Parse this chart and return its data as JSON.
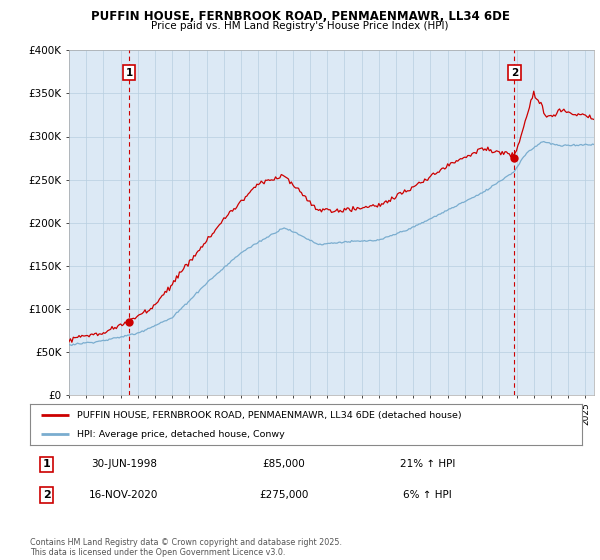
{
  "title": "PUFFIN HOUSE, FERNBROOK ROAD, PENMAENMAWR, LL34 6DE",
  "subtitle": "Price paid vs. HM Land Registry's House Price Index (HPI)",
  "ylim": [
    0,
    400000
  ],
  "yticks": [
    0,
    50000,
    100000,
    150000,
    200000,
    250000,
    300000,
    350000,
    400000
  ],
  "ytick_labels": [
    "£0",
    "£50K",
    "£100K",
    "£150K",
    "£200K",
    "£250K",
    "£300K",
    "£350K",
    "£400K"
  ],
  "xlim_start": 1995.0,
  "xlim_end": 2025.5,
  "transaction1": {
    "date_num": 1998.5,
    "price": 85000,
    "label": "1"
  },
  "transaction2": {
    "date_num": 2020.87,
    "price": 275000,
    "label": "2"
  },
  "legend_property": "PUFFIN HOUSE, FERNBROOK ROAD, PENMAENMAWR, LL34 6DE (detached house)",
  "legend_hpi": "HPI: Average price, detached house, Conwy",
  "footer": "Contains HM Land Registry data © Crown copyright and database right 2025.\nThis data is licensed under the Open Government Licence v3.0.",
  "table_rows": [
    {
      "num": "1",
      "date": "30-JUN-1998",
      "price": "£85,000",
      "hpi": "21% ↑ HPI"
    },
    {
      "num": "2",
      "date": "16-NOV-2020",
      "price": "£275,000",
      "hpi": "6% ↑ HPI"
    }
  ],
  "property_color": "#cc0000",
  "hpi_color": "#7aadcf",
  "vline_color": "#cc0000",
  "background_color": "#ffffff",
  "chart_bg_color": "#dce9f5",
  "grid_color": "#b8cfe0"
}
